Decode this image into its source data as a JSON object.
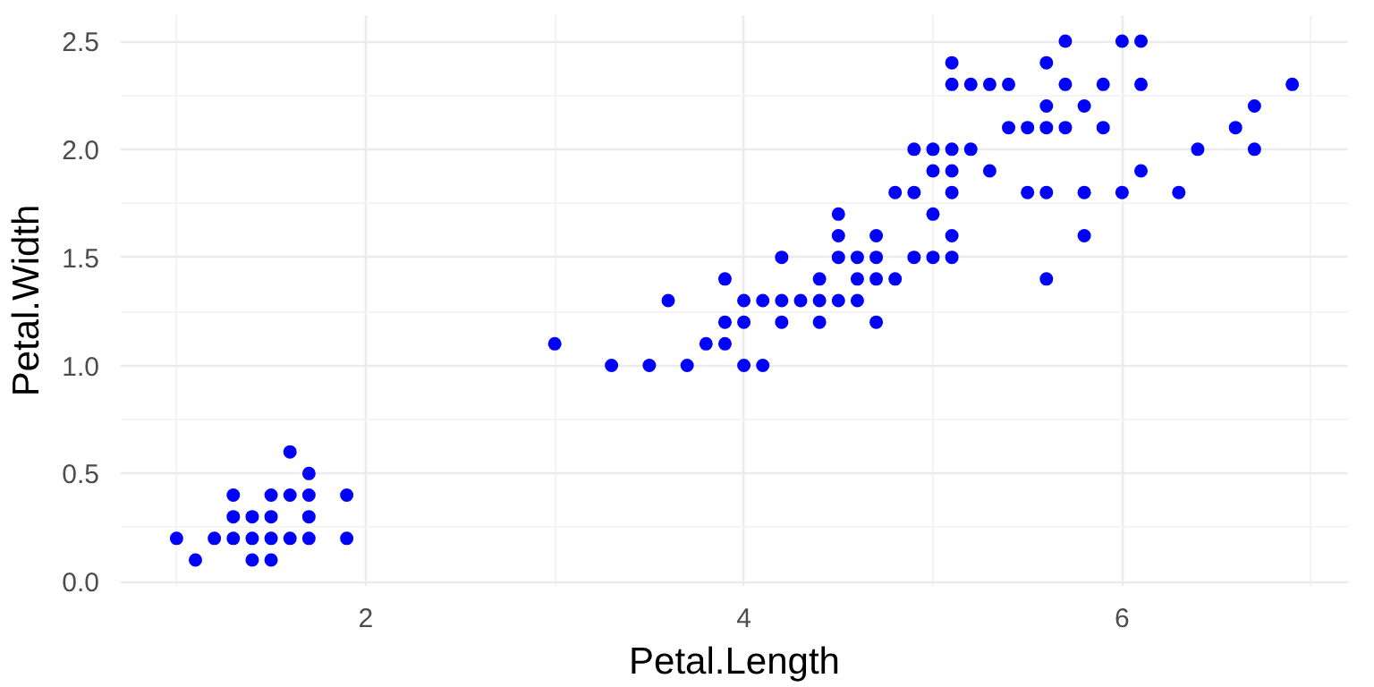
{
  "chart_data": {
    "type": "scatter",
    "xlabel": "Petal.Length",
    "ylabel": "Petal.Width",
    "xlim": [
      0.705,
      7.195
    ],
    "ylim": [
      -0.02,
      2.62
    ],
    "xticks": [
      2,
      4,
      6
    ],
    "yticks": [
      {
        "value": 0,
        "label": "0.0"
      },
      {
        "value": 0.5,
        "label": "0.5"
      },
      {
        "value": 1,
        "label": "1.0"
      },
      {
        "value": 1.5,
        "label": "1.5"
      },
      {
        "value": 2,
        "label": "2.0"
      },
      {
        "value": 2.5,
        "label": "2.5"
      }
    ],
    "grid": true,
    "marker": "circle",
    "series": [
      {
        "color": "#0000ff",
        "x": [
          1.0,
          1.1,
          1.2,
          1.3,
          1.3,
          1.3,
          1.4,
          1.4,
          1.4,
          1.5,
          1.5,
          1.5,
          1.5,
          1.6,
          1.6,
          1.6,
          1.7,
          1.7,
          1.7,
          1.7,
          1.9,
          1.9,
          4.7,
          4.5,
          4.9,
          4.0,
          4.6,
          4.5,
          4.7,
          3.3,
          4.6,
          3.9,
          3.5,
          4.2,
          4.0,
          3.6,
          4.4,
          4.1,
          3.9,
          4.8,
          4.7,
          4.3,
          4.8,
          5.0,
          3.8,
          3.7,
          3.9,
          5.1,
          4.5,
          4.7,
          4.4,
          4.1,
          4.4,
          4.6,
          4.0,
          4.2,
          4.2,
          3.0,
          6.0,
          5.1,
          5.9,
          5.6,
          5.8,
          6.6,
          4.5,
          6.3,
          5.8,
          6.1,
          5.1,
          5.3,
          5.5,
          5.0,
          5.1,
          5.3,
          5.5,
          6.7,
          6.9,
          5.0,
          5.7,
          4.9,
          6.7,
          4.9,
          5.7,
          6.0,
          5.6,
          5.8,
          6.1,
          6.4,
          5.6,
          5.1,
          5.6,
          6.1,
          5.6,
          5.4,
          5.1,
          5.9,
          5.7,
          5.2,
          5.0,
          5.2,
          5.4,
          5.1
        ],
        "values": [
          0.2,
          0.1,
          0.2,
          0.2,
          0.3,
          0.4,
          0.1,
          0.2,
          0.3,
          0.1,
          0.2,
          0.3,
          0.4,
          0.2,
          0.4,
          0.6,
          0.2,
          0.3,
          0.4,
          0.5,
          0.2,
          0.4,
          1.4,
          1.5,
          1.5,
          1.3,
          1.5,
          1.3,
          1.6,
          1.0,
          1.3,
          1.4,
          1.0,
          1.5,
          1.0,
          1.3,
          1.4,
          1.0,
          1.1,
          1.8,
          1.2,
          1.3,
          1.4,
          1.7,
          1.1,
          1.0,
          1.2,
          1.6,
          1.6,
          1.5,
          1.3,
          1.3,
          1.2,
          1.4,
          1.2,
          1.3,
          1.2,
          1.1,
          2.5,
          1.9,
          2.1,
          1.8,
          2.2,
          2.1,
          1.7,
          1.8,
          1.8,
          2.5,
          2.0,
          1.9,
          2.1,
          2.0,
          2.4,
          2.3,
          1.8,
          2.2,
          2.3,
          1.5,
          2.3,
          2.0,
          2.0,
          1.8,
          2.1,
          1.8,
          2.1,
          1.6,
          1.9,
          2.0,
          2.2,
          1.5,
          1.4,
          2.3,
          2.4,
          2.1,
          2.3,
          2.3,
          2.5,
          2.3,
          1.9,
          2.0,
          2.3,
          1.8
        ]
      }
    ]
  }
}
